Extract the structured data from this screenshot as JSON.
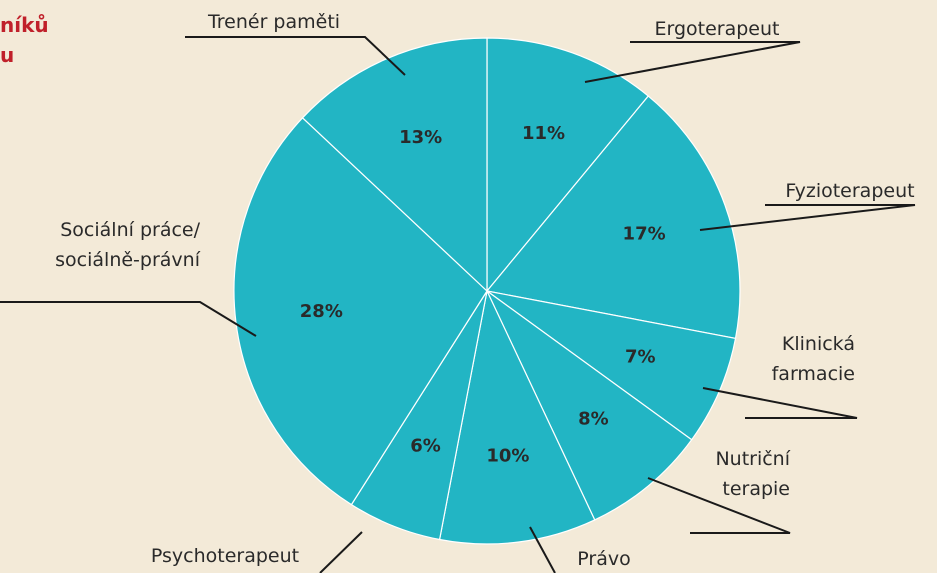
{
  "chart_data": {
    "type": "pie",
    "title_lines": [
      "níků",
      "u"
    ],
    "categories": [
      "Ergoterapeut",
      "Fyzioterapeut",
      "Klinická\nfarmacie",
      "Nutriční\nterapie",
      "Právo",
      "Psychoterapeut",
      "Sociální práce/\nsociálně-právní",
      "Trenér paměti"
    ],
    "values": [
      11,
      17,
      7,
      8,
      10,
      6,
      28,
      13
    ],
    "value_labels": [
      "11%",
      "17%",
      "7%",
      "8%",
      "10%",
      "6%",
      "28%",
      "13%"
    ],
    "color": "#22b5c4"
  }
}
